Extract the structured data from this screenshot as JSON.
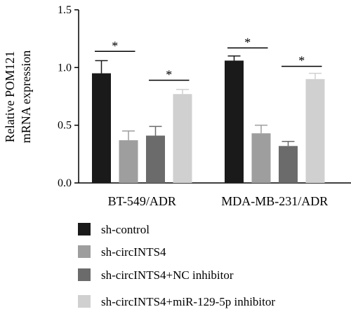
{
  "chart_data": {
    "type": "bar",
    "title": "",
    "xlabel": "",
    "ylabel_line1": "Relative POM121",
    "ylabel_line2": "mRNA expression",
    "ylim": [
      0,
      1.5
    ],
    "yticks": [
      "0.0",
      "0.5",
      "1.0",
      "1.5"
    ],
    "ytick_values": [
      0,
      0.5,
      1.0,
      1.5
    ],
    "categories": [
      "BT-549/ADR",
      "MDA-MB-231/ADR"
    ],
    "series": [
      {
        "name": "sh-control",
        "color": "#1a1a1a",
        "values": [
          0.95,
          1.06
        ],
        "errors": [
          0.11,
          0.04
        ]
      },
      {
        "name": "sh-circINTS4",
        "color": "#9e9e9e",
        "values": [
          0.37,
          0.43
        ],
        "errors": [
          0.08,
          0.07
        ]
      },
      {
        "name": "sh-circINTS4+NC inhibitor",
        "color": "#6b6b6b",
        "values": [
          0.41,
          0.32
        ],
        "errors": [
          0.08,
          0.04
        ]
      },
      {
        "name": "sh-circINTS4+miR-129-5p inhibitor",
        "color": "#d0d0d0",
        "values": [
          0.77,
          0.9
        ],
        "errors": [
          0.04,
          0.05
        ]
      }
    ],
    "significance": [
      {
        "category": 0,
        "from": 0,
        "to": 1,
        "level": 1.14,
        "label": "*"
      },
      {
        "category": 0,
        "from": 2,
        "to": 3,
        "level": 0.89,
        "label": "*"
      },
      {
        "category": 1,
        "from": 0,
        "to": 1,
        "level": 1.17,
        "label": "*"
      },
      {
        "category": 1,
        "from": 2,
        "to": 3,
        "level": 1.01,
        "label": "*"
      }
    ],
    "legend_position": "bottom",
    "grid": false
  }
}
